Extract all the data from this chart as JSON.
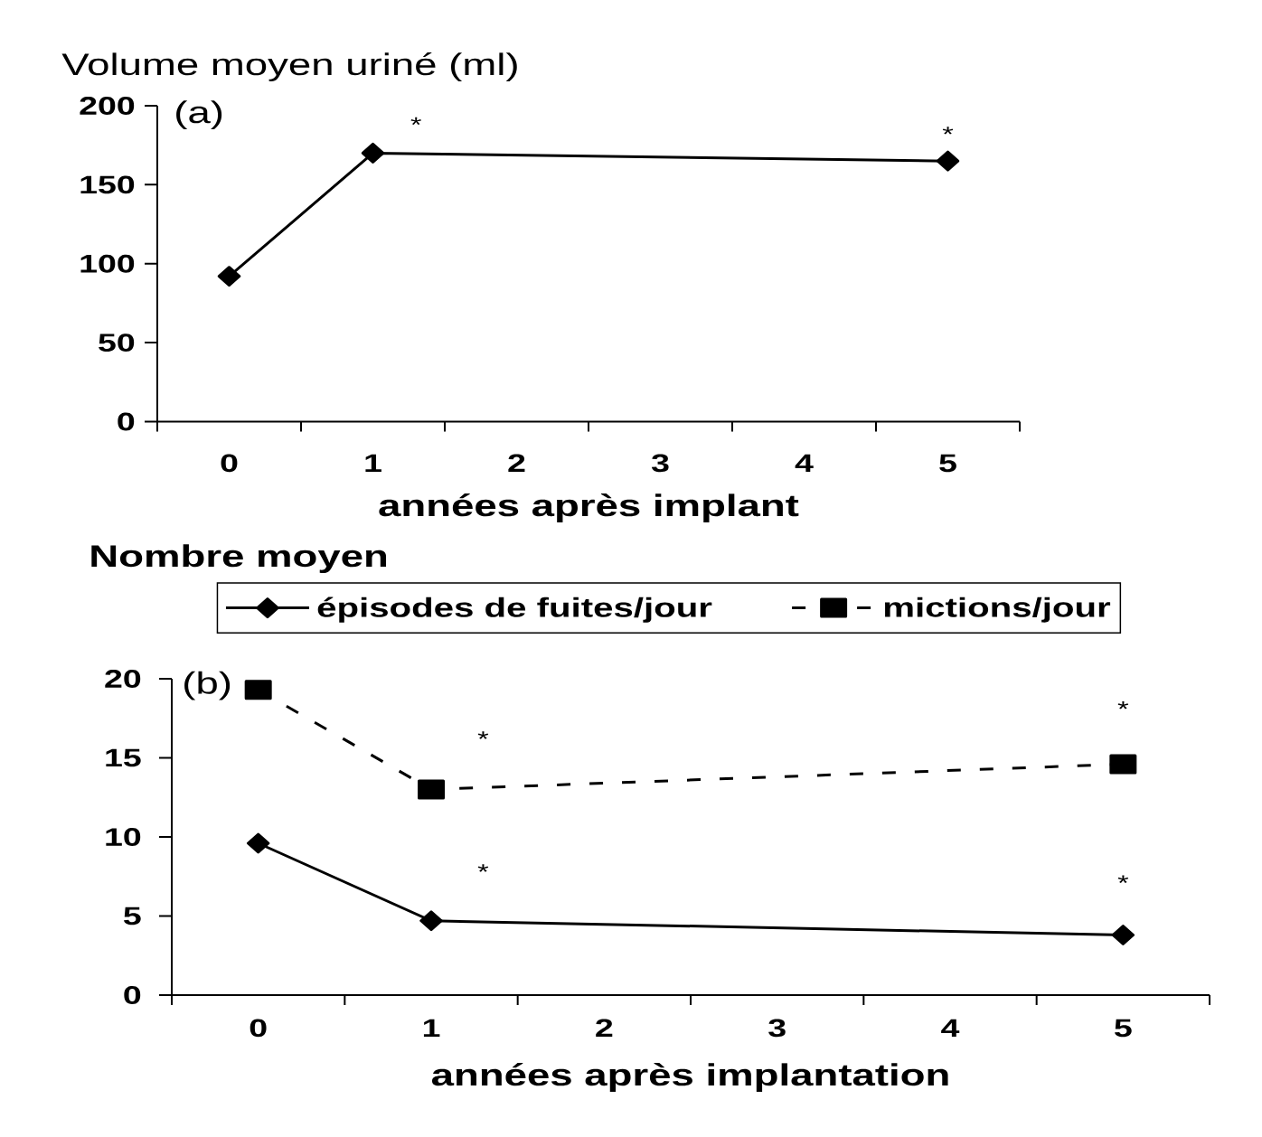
{
  "chart_data": [
    {
      "type": "line",
      "ylabel": "Volume moyen uriné (ml)",
      "xlabel": "années après implant",
      "annotations": [
        "(a)",
        "*",
        "*"
      ],
      "x": [
        0,
        1,
        5
      ],
      "series": [
        {
          "color": "#000000",
          "values": [
            92,
            170,
            165
          ],
          "marker": "diamond",
          "line_style": "solid"
        }
      ],
      "xlim": [
        -0.5,
        5.5
      ],
      "xticks": [
        {
          "value": -0.5,
          "label": null
        },
        0,
        {
          "value": 0.5,
          "label": null
        },
        1,
        {
          "value": 1.5,
          "label": null
        },
        2,
        {
          "value": 2.5,
          "label": null
        },
        3,
        {
          "value": 3.5,
          "label": null
        },
        4,
        {
          "value": 4.5,
          "label": null
        },
        5,
        {
          "value": 5.5,
          "label": null
        }
      ],
      "ylim": [
        0,
        200
      ],
      "yticks": [
        0,
        50,
        100,
        150,
        200
      ]
    },
    {
      "type": "line",
      "ylabel": "Nombre moyen",
      "xlabel": "années après implantation",
      "legend": "top",
      "annotations": [
        "(b)",
        "*",
        "*",
        "*",
        "*"
      ],
      "x": [
        0,
        1,
        5
      ],
      "series": [
        {
          "name": "épisodes de fuites/jour",
          "color": "#000000",
          "values": [
            9.6,
            4.7,
            3.8
          ],
          "marker": "diamond",
          "line_style": "solid"
        },
        {
          "name": "mictions/jour",
          "color": "#000000",
          "values": [
            19.3,
            13,
            14.6
          ],
          "marker": "square",
          "line_style": "dashed"
        }
      ],
      "xlim": [
        -0.5,
        5.5
      ],
      "xticks": [
        {
          "value": -0.5,
          "label": null
        },
        0,
        {
          "value": 0.5,
          "label": null
        },
        1,
        {
          "value": 1.5,
          "label": null
        },
        2,
        {
          "value": 2.5,
          "label": null
        },
        3,
        {
          "value": 3.5,
          "label": null
        },
        4,
        {
          "value": 4.5,
          "label": null
        },
        5,
        {
          "value": 5.5,
          "label": null
        }
      ],
      "ylim": [
        0,
        20
      ],
      "yticks": [
        0,
        5,
        10,
        15,
        20
      ]
    }
  ]
}
